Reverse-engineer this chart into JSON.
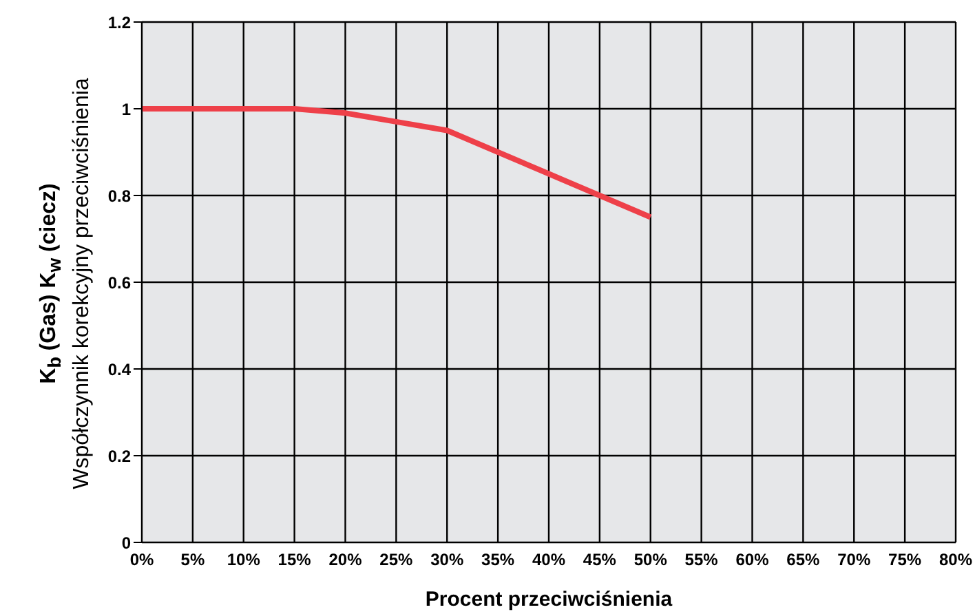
{
  "chart_data": {
    "type": "line",
    "xlabel": "Procent przeciwciśnienia",
    "ylabel": "K$_{b}$ (Gas) K$_{w}$ (ciecz)\nWspółczynnik korekcyjny przeciwciśnienia",
    "x": [
      0,
      15,
      20,
      25,
      30,
      35,
      40,
      45,
      50
    ],
    "series": [
      {
        "color": "#ee4049",
        "values": [
          1,
          1,
          0.99,
          0.97,
          0.95,
          0.9,
          0.85,
          0.8,
          0.75
        ]
      }
    ],
    "xlim": [
      0,
      80
    ],
    "xticks": [
      {
        "value": 0,
        "label": "0%"
      },
      {
        "value": 5,
        "label": "5%"
      },
      {
        "value": 10,
        "label": "10%"
      },
      {
        "value": 15,
        "label": "15%"
      },
      {
        "value": 20,
        "label": "20%"
      },
      {
        "value": 25,
        "label": "25%"
      },
      {
        "value": 30,
        "label": "30%"
      },
      {
        "value": 35,
        "label": "35%"
      },
      {
        "value": 40,
        "label": "40%"
      },
      {
        "value": 45,
        "label": "45%"
      },
      {
        "value": 50,
        "label": "50%"
      },
      {
        "value": 55,
        "label": "55%"
      },
      {
        "value": 60,
        "label": "60%"
      },
      {
        "value": 65,
        "label": "65%"
      },
      {
        "value": 70,
        "label": "70%"
      },
      {
        "value": 75,
        "label": "75%"
      },
      {
        "value": 80,
        "label": "80%"
      }
    ],
    "ylim": [
      0,
      1.2
    ],
    "yticks": [
      0,
      0.2,
      0.4,
      0.6,
      0.8,
      1,
      1.2
    ],
    "grid": true,
    "marker": "none",
    "line_style": "solid"
  }
}
